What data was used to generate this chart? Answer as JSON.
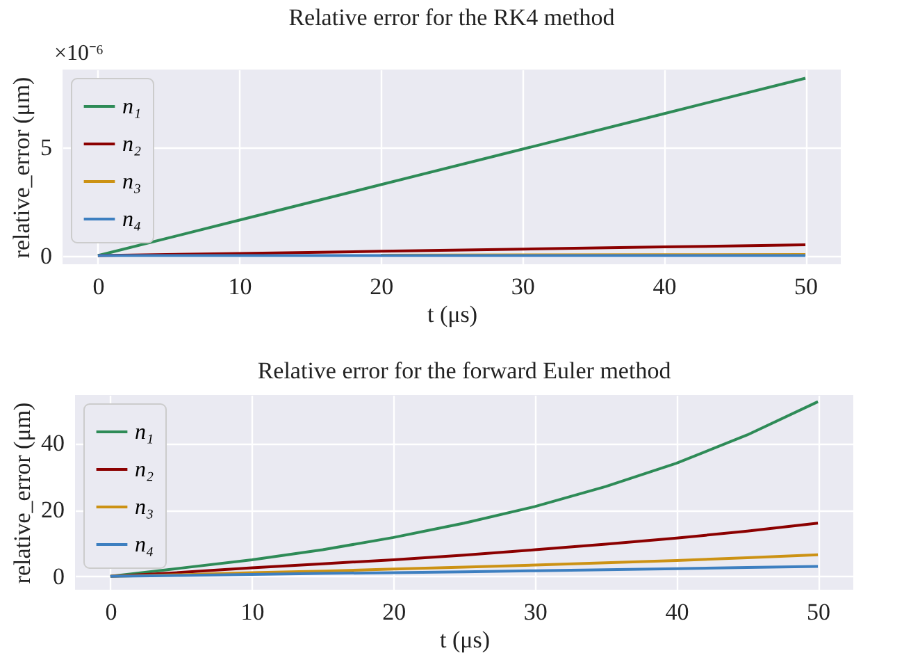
{
  "chart_data": [
    {
      "type": "line",
      "title": "Relative error for the RK4 method",
      "xlabel": "t (μs)",
      "ylabel": "relative_error (μm)",
      "annotations": [
        "×10⁻⁶"
      ],
      "x": [
        0,
        10,
        20,
        30,
        40,
        50
      ],
      "series": [
        {
          "name": "n₁",
          "color": "#2e8b57",
          "values": [
            0,
            1.64,
            3.28,
            4.92,
            6.56,
            8.2
          ]
        },
        {
          "name": "n₂",
          "color": "#8b0000",
          "values": [
            0,
            0.1,
            0.2,
            0.3,
            0.4,
            0.5
          ]
        },
        {
          "name": "n₃",
          "color": "#cc9214",
          "values": [
            null,
            null,
            0.02,
            0.03,
            0.04,
            0.05
          ]
        },
        {
          "name": "n₄",
          "color": "#3d7fc0",
          "values": [
            0,
            0,
            0,
            0,
            0,
            0
          ]
        }
      ],
      "xlim": [
        -2.5,
        52.5
      ],
      "xticks": [
        0,
        10,
        20,
        30,
        40,
        50
      ],
      "ylim": [
        -0.4,
        8.6
      ],
      "yticks": [
        0,
        5
      ],
      "grid": true,
      "legend": "top left"
    },
    {
      "type": "line",
      "title": "Relative error for the forward Euler method",
      "xlabel": "t (μs)",
      "ylabel": "relative_error (μm)",
      "x": [
        0,
        5,
        10,
        15,
        20,
        25,
        30,
        35,
        40,
        45,
        50
      ],
      "series": [
        {
          "name": "n₁",
          "color": "#2e8b57",
          "values": [
            0,
            2.5,
            5,
            8,
            11.7,
            16,
            21,
            27,
            34,
            42.5,
            52.5
          ]
        },
        {
          "name": "n₂",
          "color": "#8b0000",
          "values": [
            0,
            1.2,
            2.6,
            3.8,
            5,
            6.4,
            8,
            9.7,
            11.5,
            13.6,
            16
          ]
        },
        {
          "name": "n₃",
          "color": "#cc9214",
          "values": [
            0,
            0.5,
            1.1,
            1.6,
            2.2,
            2.8,
            3.4,
            4.1,
            4.8,
            5.6,
            6.5
          ]
        },
        {
          "name": "n₄",
          "color": "#3d7fc0",
          "values": [
            0,
            0.3,
            0.6,
            0.9,
            1.1,
            1.4,
            1.7,
            2,
            2.3,
            2.7,
            3
          ]
        }
      ],
      "xlim": [
        -2.5,
        52.5
      ],
      "xticks": [
        0,
        10,
        20,
        30,
        40,
        50
      ],
      "ylim": [
        -4,
        54.5
      ],
      "yticks": [
        0,
        20,
        40
      ],
      "grid": true,
      "legend": "top left"
    }
  ]
}
